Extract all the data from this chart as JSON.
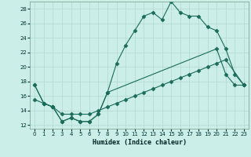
{
  "xlabel": "Humidex (Indice chaleur)",
  "bg_color": "#cceee8",
  "grid_color": "#b0d8d0",
  "line_color": "#1a6b5a",
  "xlim": [
    -0.5,
    23.5
  ],
  "ylim": [
    11.5,
    29.0
  ],
  "xticks": [
    0,
    1,
    2,
    3,
    4,
    5,
    6,
    7,
    8,
    9,
    10,
    11,
    12,
    13,
    14,
    15,
    16,
    17,
    18,
    19,
    20,
    21,
    22,
    23
  ],
  "yticks": [
    12,
    14,
    16,
    18,
    20,
    22,
    24,
    26,
    28
  ],
  "line1_x": [
    0,
    1,
    2,
    3,
    4,
    5,
    6,
    7,
    8,
    20,
    21,
    22,
    23
  ],
  "line1_y": [
    17.5,
    15.0,
    14.5,
    12.5,
    13.0,
    12.5,
    12.5,
    13.5,
    16.5,
    22.5,
    19.0,
    17.5,
    17.5
  ],
  "line2_x": [
    0,
    1,
    2,
    3,
    4,
    5,
    6,
    7,
    8,
    9,
    10,
    11,
    12,
    13,
    14,
    15,
    16,
    17,
    18,
    19,
    20,
    21,
    22,
    23
  ],
  "line2_y": [
    17.5,
    15.0,
    14.5,
    12.5,
    13.0,
    12.5,
    12.5,
    13.5,
    16.5,
    20.5,
    23.0,
    25.0,
    27.0,
    27.5,
    26.5,
    29.0,
    27.5,
    27.0,
    27.0,
    25.5,
    25.0,
    22.5,
    19.0,
    17.5
  ],
  "line3_x": [
    0,
    1,
    2,
    3,
    4,
    5,
    6,
    7,
    8,
    9,
    10,
    11,
    12,
    13,
    14,
    15,
    16,
    17,
    18,
    19,
    20,
    21,
    22,
    23
  ],
  "line3_y": [
    15.5,
    15.0,
    14.5,
    13.5,
    13.5,
    13.5,
    13.5,
    14.0,
    14.5,
    15.0,
    15.5,
    16.0,
    16.5,
    17.0,
    17.5,
    18.0,
    18.5,
    19.0,
    19.5,
    20.0,
    20.5,
    21.0,
    null,
    17.5
  ]
}
